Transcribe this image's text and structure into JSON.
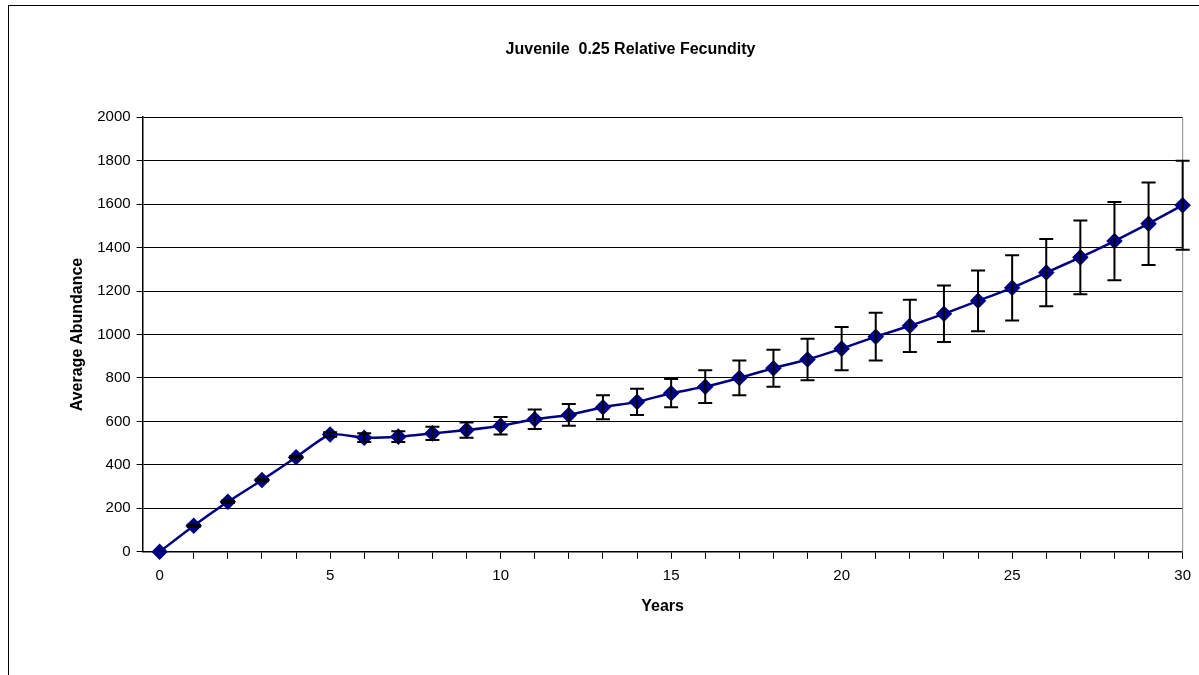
{
  "chart_data": {
    "type": "line",
    "title": "Juvenile  0.25 Relative Fecundity",
    "xlabel": "Years",
    "ylabel": "Average Abundance",
    "x": [
      0,
      1,
      2,
      3,
      4,
      5,
      6,
      7,
      8,
      9,
      10,
      11,
      12,
      13,
      14,
      15,
      16,
      17,
      18,
      19,
      20,
      21,
      22,
      23,
      24,
      25,
      26,
      27,
      28,
      29,
      30
    ],
    "series": [
      {
        "color": "#000080",
        "values": [
          0,
          120,
          230,
          330,
          435,
          540,
          525,
          530,
          545,
          560,
          580,
          610,
          630,
          665,
          690,
          730,
          760,
          800,
          845,
          885,
          935,
          990,
          1040,
          1095,
          1155,
          1215,
          1285,
          1355,
          1430,
          1510,
          1595
        ],
        "errors": [
          null,
          5,
          5,
          5,
          5,
          10,
          20,
          25,
          30,
          35,
          40,
          45,
          50,
          55,
          60,
          65,
          75,
          80,
          85,
          95,
          100,
          110,
          120,
          130,
          140,
          150,
          155,
          170,
          180,
          190,
          205
        ]
      }
    ],
    "xlim": [
      -0.5,
      30
    ],
    "xticks": [
      0,
      {
        "value": 1,
        "label": null
      },
      {
        "value": 2,
        "label": null
      },
      {
        "value": 3,
        "label": null
      },
      {
        "value": 4,
        "label": null
      },
      5,
      {
        "value": 6,
        "label": null
      },
      {
        "value": 7,
        "label": null
      },
      {
        "value": 8,
        "label": null
      },
      {
        "value": 9,
        "label": null
      },
      10,
      {
        "value": 11,
        "label": null
      },
      {
        "value": 12,
        "label": null
      },
      {
        "value": 13,
        "label": null
      },
      {
        "value": 14,
        "label": null
      },
      15,
      {
        "value": 16,
        "label": null
      },
      {
        "value": 17,
        "label": null
      },
      {
        "value": 18,
        "label": null
      },
      {
        "value": 19,
        "label": null
      },
      20,
      {
        "value": 21,
        "label": null
      },
      {
        "value": 22,
        "label": null
      },
      {
        "value": 23,
        "label": null
      },
      {
        "value": 24,
        "label": null
      },
      25,
      {
        "value": 26,
        "label": null
      },
      {
        "value": 27,
        "label": null
      },
      {
        "value": 28,
        "label": null
      },
      {
        "value": 29,
        "label": null
      },
      30
    ],
    "ylim": [
      0,
      2000
    ],
    "yticks": [
      0,
      200,
      400,
      600,
      800,
      1000,
      1200,
      1400,
      1600,
      1800,
      2000
    ],
    "grid": "y",
    "legend": false,
    "marker": "diamond",
    "line_style": "solid"
  }
}
